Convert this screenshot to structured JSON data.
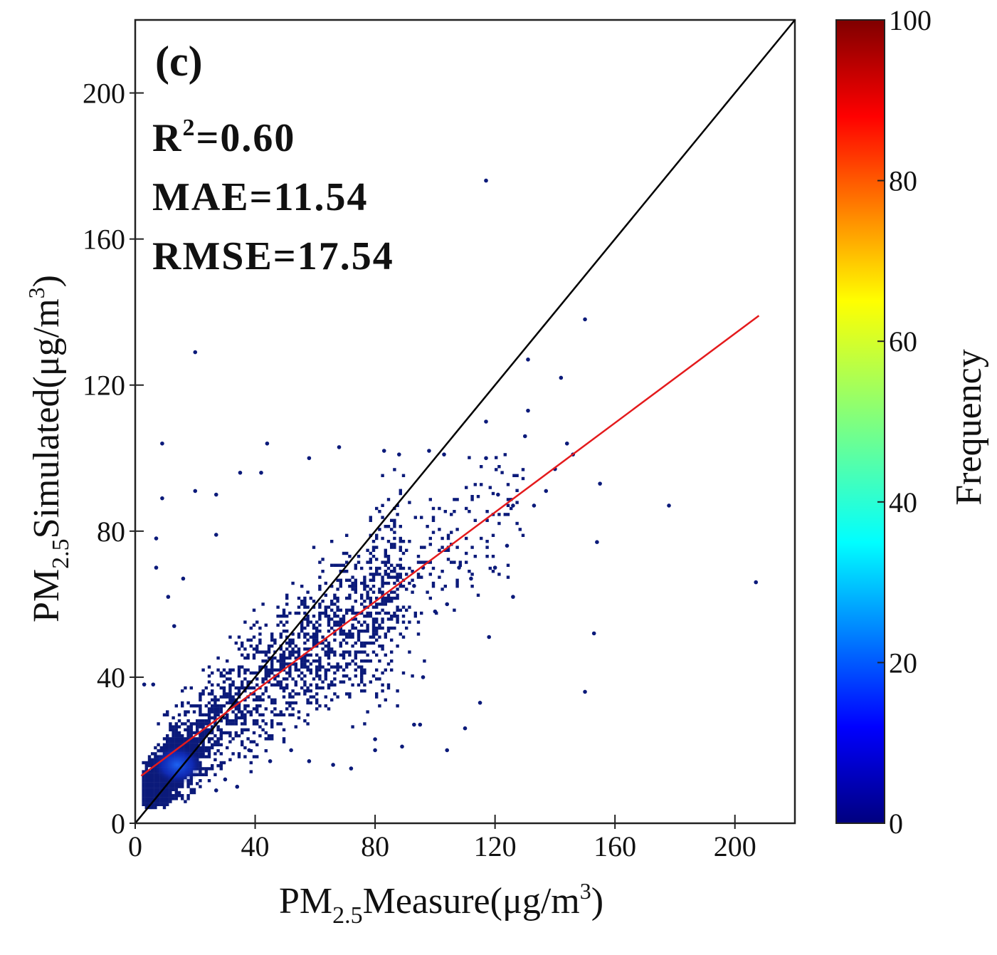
{
  "chart_data": {
    "type": "scatter",
    "title": "",
    "panel_label": "(c)",
    "xlabel": {
      "main": "PM",
      "sub": "2.5",
      "rest": "Measure(μg/m",
      "sup": "3",
      "end": ")"
    },
    "ylabel": {
      "main": "PM",
      "sub": "2.5",
      "rest": "Simulated(μg/m",
      "sup": "3",
      "end": ")"
    },
    "xlim": [
      0,
      220
    ],
    "ylim": [
      0,
      220
    ],
    "xticks": [
      "0",
      "40",
      "80",
      "120",
      "160",
      "200"
    ],
    "xtick_values": [
      0,
      40,
      80,
      120,
      160,
      200
    ],
    "yticks": [
      "0",
      "40",
      "80",
      "120",
      "160",
      "200"
    ],
    "ytick_values": [
      0,
      40,
      80,
      120,
      160,
      200
    ],
    "stats": {
      "r2_label": "R",
      "r2_sup": "2",
      "r2_value": "=0.60",
      "mae": "MAE=11.54",
      "rmse": "RMSE=17.54"
    },
    "one_to_one_line": {
      "from": [
        0,
        0
      ],
      "to": [
        220,
        220
      ],
      "color": "#000000"
    },
    "regression_line": {
      "from": [
        2,
        13
      ],
      "to": [
        208,
        139
      ],
      "color": "#e41a1c"
    },
    "colorbar": {
      "label": "Frequency",
      "ticks": [
        "0",
        "20",
        "40",
        "60",
        "80",
        "100"
      ],
      "tick_values": [
        0,
        20,
        40,
        60,
        80,
        100
      ],
      "range": [
        0,
        100
      ],
      "colormap": "jet"
    },
    "points": [
      [
        117,
        176
      ],
      [
        20,
        129
      ],
      [
        150,
        138
      ],
      [
        142,
        122
      ],
      [
        131,
        127
      ],
      [
        9,
        104
      ],
      [
        44,
        104
      ],
      [
        68,
        103
      ],
      [
        58,
        100
      ],
      [
        83,
        102
      ],
      [
        88,
        101
      ],
      [
        98,
        102
      ],
      [
        103,
        101
      ],
      [
        144,
        104
      ],
      [
        146,
        101
      ],
      [
        155,
        93
      ],
      [
        178,
        87
      ],
      [
        154,
        77
      ],
      [
        153,
        52
      ],
      [
        150,
        36
      ],
      [
        207,
        66
      ],
      [
        115,
        33
      ],
      [
        110,
        26
      ],
      [
        104,
        20
      ],
      [
        118,
        51
      ],
      [
        140,
        97
      ],
      [
        126,
        62
      ],
      [
        131,
        113
      ],
      [
        130,
        106
      ],
      [
        117,
        110
      ],
      [
        117,
        100
      ],
      [
        7,
        78
      ],
      [
        7,
        70
      ],
      [
        6,
        38
      ],
      [
        3,
        38
      ],
      [
        35,
        96
      ],
      [
        42,
        96
      ],
      [
        20,
        91
      ],
      [
        27,
        90
      ],
      [
        27,
        79
      ],
      [
        9,
        89
      ],
      [
        11,
        62
      ],
      [
        13,
        54
      ],
      [
        16,
        67
      ],
      [
        93,
        65
      ],
      [
        96,
        70
      ],
      [
        100,
        58
      ],
      [
        104,
        60
      ],
      [
        108,
        70
      ],
      [
        112,
        67
      ],
      [
        120,
        70
      ],
      [
        124,
        76
      ],
      [
        121,
        90
      ],
      [
        126,
        87
      ],
      [
        133,
        87
      ],
      [
        137,
        91
      ],
      [
        96,
        40
      ],
      [
        95,
        27
      ],
      [
        93,
        27
      ],
      [
        89,
        21
      ],
      [
        80,
        23
      ],
      [
        80,
        20
      ],
      [
        72,
        15
      ],
      [
        66,
        16
      ],
      [
        58,
        17
      ],
      [
        52,
        20
      ],
      [
        45,
        17
      ],
      [
        38,
        20
      ],
      [
        34,
        10
      ],
      [
        27,
        9
      ],
      [
        30,
        12
      ]
    ],
    "point_color": "#0b1a7a"
  }
}
